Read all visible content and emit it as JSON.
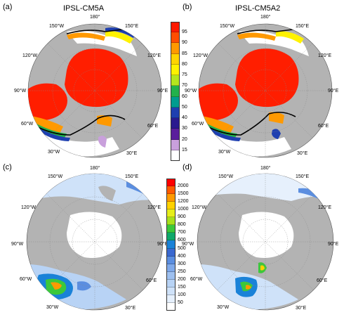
{
  "panels": {
    "a": {
      "label": "(a)",
      "title": "IPSL-CM5A"
    },
    "b": {
      "label": "(b)",
      "title": "IPSL-CM5A2"
    },
    "c": {
      "label": "(c)"
    },
    "d": {
      "label": "(d)"
    }
  },
  "lon_labels": [
    "180°",
    "150°E",
    "120°E",
    "90°E",
    "60°E",
    "30°E",
    "30°W",
    "60°W",
    "90°W",
    "120°W",
    "150°W"
  ],
  "colorbars": {
    "top": {
      "ticks": [
        "95",
        "90",
        "85",
        "80",
        "75",
        "70",
        "60",
        "50",
        "40",
        "30",
        "20",
        "15"
      ],
      "colors": [
        "#ff1a00",
        "#ff4d00",
        "#ff9900",
        "#ffd400",
        "#fff200",
        "#b5e61d",
        "#22b14c",
        "#009c8f",
        "#1e3fb0",
        "#2a1a8f",
        "#5a1e9c",
        "#c9a0dc",
        "#ffffff"
      ]
    },
    "bottom": {
      "ticks": [
        "2000",
        "1500",
        "1200",
        "1000",
        "900",
        "800",
        "700",
        "600",
        "500",
        "400",
        "300",
        "250",
        "200",
        "150",
        "100",
        "50"
      ],
      "colors": [
        "#ff0000",
        "#ff5a00",
        "#ff9a00",
        "#ffd200",
        "#e6ee1a",
        "#a8e01c",
        "#3cc83a",
        "#0fa86a",
        "#1a82d8",
        "#3a68d0",
        "#5b8ee0",
        "#7fa9ea",
        "#9ec0f0",
        "#b8d3f5",
        "#cfe2f9",
        "#e6f0fc",
        "#ffffff"
      ]
    }
  },
  "colors": {
    "land": "#b3b3b3",
    "ocean": "#ffffff",
    "ice_red": "#ff1e00",
    "edge_line": "#000000"
  }
}
